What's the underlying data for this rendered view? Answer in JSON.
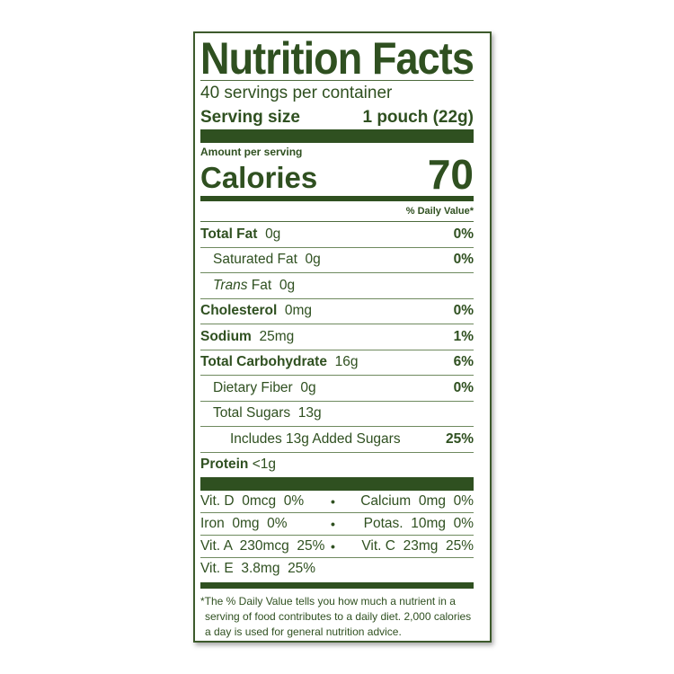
{
  "title": "Nutrition Facts",
  "servings": "40 servings per container",
  "serving_size_label": "Serving size",
  "serving_size_value": "1 pouch (22g)",
  "amount_per_serving": "Amount per serving",
  "calories_label": "Calories",
  "calories_value": "70",
  "daily_value_header": "% Daily Value*",
  "nutrients": [
    {
      "name": "Total Fat",
      "amount": "0g",
      "dv": "0%"
    },
    {
      "name": "Saturated Fat",
      "amount": "0g",
      "dv": "0%"
    },
    {
      "name": "Trans",
      "name_suffix": "Fat",
      "amount": "0g",
      "dv": ""
    },
    {
      "name": "Cholesterol",
      "amount": "0mg",
      "dv": "0%"
    },
    {
      "name": "Sodium",
      "amount": "25mg",
      "dv": "1%"
    },
    {
      "name": "Total Carbohydrate",
      "amount": "16g",
      "dv": "6%"
    },
    {
      "name": "Dietary Fiber",
      "amount": "0g",
      "dv": "0%"
    },
    {
      "name": "Total Sugars",
      "amount": "13g",
      "dv": ""
    },
    {
      "name": "Includes 13g Added Sugars",
      "amount": "",
      "dv": "25%"
    },
    {
      "name": "Protein",
      "amount": "<1g",
      "dv": ""
    }
  ],
  "vitamins": [
    {
      "left": "Vit. D  0mcg  0%",
      "right": "Calcium  0mg  0%"
    },
    {
      "left": "Iron  0mg  0%",
      "right": "Potas.  10mg  0%"
    },
    {
      "left": "Vit. A  230mcg  25%",
      "right": "Vit. C  23mg  25%"
    },
    {
      "left": "Vit. E  3.8mg  25%",
      "right": ""
    }
  ],
  "bullet": "•",
  "footnote": [
    "*The % Daily Value tells you how much a nutrient in a",
    "serving of food contributes to a daily diet. 2,000 calories",
    "a day is used for general nutrition advice."
  ],
  "colors": {
    "label_green": "#2f5020",
    "background": "#ffffff"
  }
}
